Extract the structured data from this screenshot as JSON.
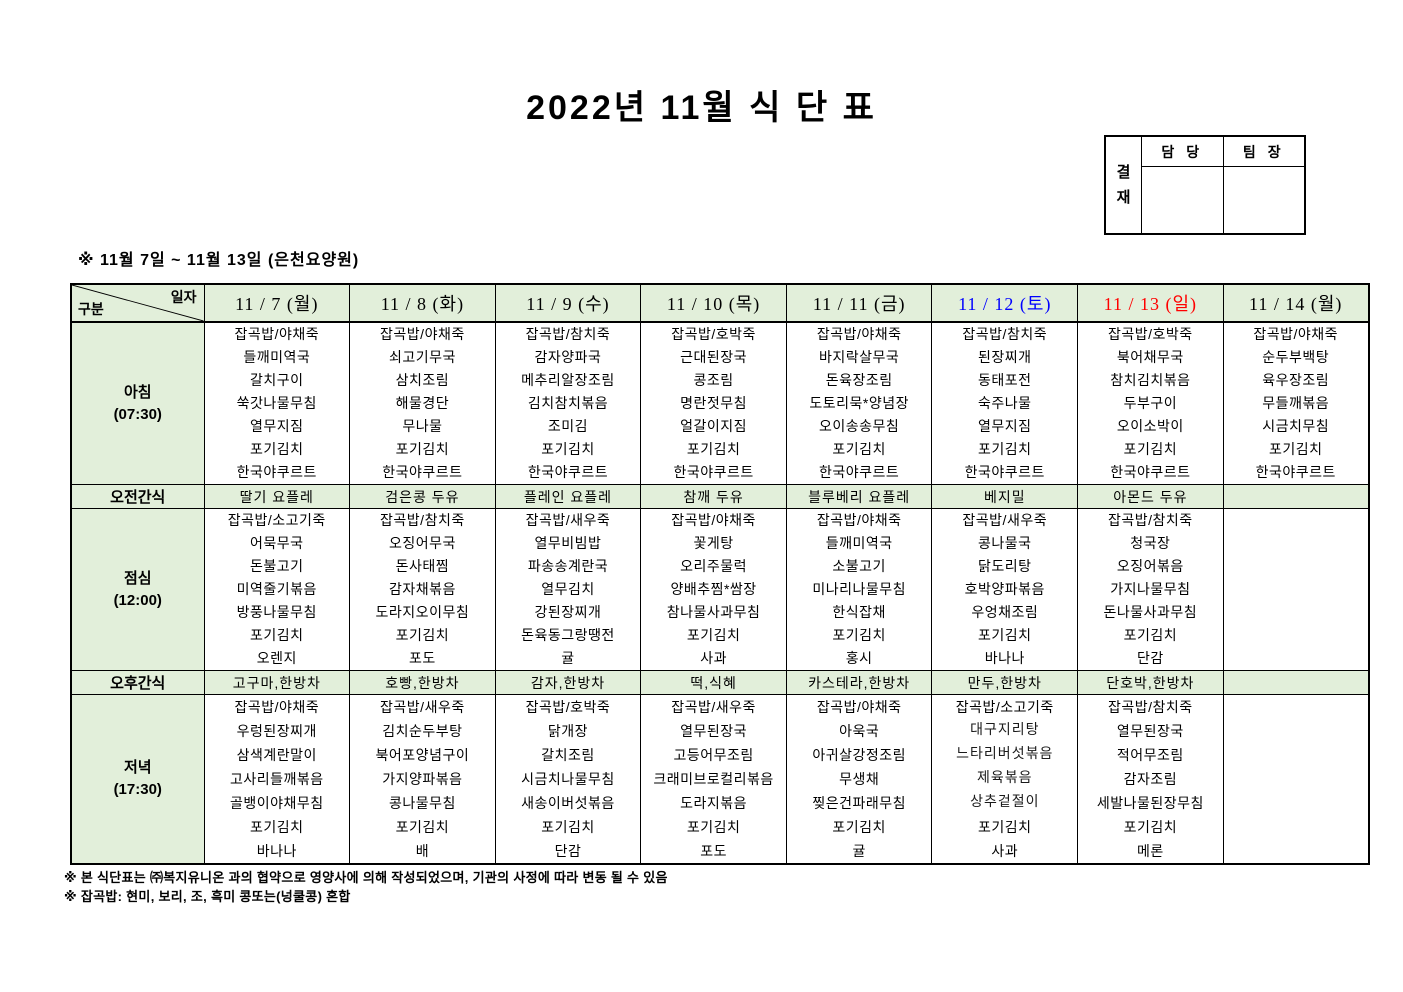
{
  "title": "2022년 11월 식 단 표",
  "subtitle": "※ 11월 7일 ~ 11월 13일 (은천요양원)",
  "approval": {
    "side_label": "결재",
    "columns": [
      "담 당",
      "팀 장"
    ]
  },
  "colors": {
    "header_bg": "#e2efda",
    "weekday": "#000000",
    "saturday": "#0000ff",
    "sunday": "#ff0000"
  },
  "table": {
    "corner": {
      "top": "일자",
      "bottom": "구분"
    },
    "dates": [
      {
        "label": "11 / 7 (월)",
        "color": "#000000"
      },
      {
        "label": "11 / 8 (화)",
        "color": "#000000"
      },
      {
        "label": "11 / 9 (수)",
        "color": "#000000"
      },
      {
        "label": "11 / 10 (목)",
        "color": "#000000"
      },
      {
        "label": "11 / 11 (금)",
        "color": "#000000"
      },
      {
        "label": "11 / 12 (토)",
        "color": "#0000ff"
      },
      {
        "label": "11 / 13 (일)",
        "color": "#ff0000"
      },
      {
        "label": "11 / 14 (월)",
        "color": "#000000"
      }
    ],
    "serif_items": [
      "대구지리탕",
      "느타리버섯볶음",
      "제육볶음",
      "상추겉절이"
    ],
    "rows": [
      {
        "id": "breakfast",
        "type": "meal",
        "label": "아침",
        "time": "(07:30)",
        "cells": [
          [
            "잡곡밥/야채죽",
            "들깨미역국",
            "갈치구이",
            "쑥갓나물무침",
            "열무지짐",
            "포기김치",
            "한국야쿠르트"
          ],
          [
            "잡곡밥/야채죽",
            "쇠고기무국",
            "삼치조림",
            "해물경단",
            "무나물",
            "포기김치",
            "한국야쿠르트"
          ],
          [
            "잡곡밥/참치죽",
            "감자양파국",
            "메추리알장조림",
            "김치참치볶음",
            "조미김",
            "포기김치",
            "한국야쿠르트"
          ],
          [
            "잡곡밥/호박죽",
            "근대된장국",
            "콩조림",
            "명란젓무침",
            "얼갈이지짐",
            "포기김치",
            "한국야쿠르트"
          ],
          [
            "잡곡밥/야채죽",
            "바지락살무국",
            "돈육장조림",
            "도토리묵*양념장",
            "오이송송무침",
            "포기김치",
            "한국야쿠르트"
          ],
          [
            "잡곡밥/참치죽",
            "된장찌개",
            "동태포전",
            "숙주나물",
            "열무지짐",
            "포기김치",
            "한국야쿠르트"
          ],
          [
            "잡곡밥/호박죽",
            "북어채무국",
            "참치김치볶음",
            "두부구이",
            "오이소박이",
            "포기김치",
            "한국야쿠르트"
          ],
          [
            "잡곡밥/야채죽",
            "순두부백탕",
            "육우장조림",
            "무들깨볶음",
            "시금치무침",
            "포기김치",
            "한국야쿠르트"
          ]
        ]
      },
      {
        "id": "morning-snack",
        "type": "snack",
        "label": "오전간식",
        "cells": [
          "딸기 요플레",
          "검은콩 두유",
          "플레인 요플레",
          "참깨 두유",
          "블루베리 요플레",
          "베지밀",
          "아몬드 두유",
          ""
        ]
      },
      {
        "id": "lunch",
        "type": "meal",
        "label": "점심",
        "time": "(12:00)",
        "cells": [
          [
            "잡곡밥/소고기죽",
            "어묵무국",
            "돈불고기",
            "미역줄기볶음",
            "방풍나물무침",
            "포기김치",
            "오렌지"
          ],
          [
            "잡곡밥/참치죽",
            "오징어무국",
            "돈사태찜",
            "감자채볶음",
            "도라지오이무침",
            "포기김치",
            "포도"
          ],
          [
            "잡곡밥/새우죽",
            "열무비빔밥",
            "파송송계란국",
            "열무김치",
            "강된장찌개",
            "돈육동그랑땡전",
            "귤"
          ],
          [
            "잡곡밥/야채죽",
            "꽃게탕",
            "오리주물럭",
            "양배추찜*쌈장",
            "참나물사과무침",
            "포기김치",
            "사과"
          ],
          [
            "잡곡밥/야채죽",
            "들깨미역국",
            "소불고기",
            "미나리나물무침",
            "한식잡채",
            "포기김치",
            "홍시"
          ],
          [
            "잡곡밥/새우죽",
            "콩나물국",
            "닭도리탕",
            "호박양파볶음",
            "우엉채조림",
            "포기김치",
            "바나나"
          ],
          [
            "잡곡밥/참치죽",
            "청국장",
            "오징어볶음",
            "가지나물무침",
            "돈나물사과무침",
            "포기김치",
            "단감"
          ],
          []
        ]
      },
      {
        "id": "afternoon-snack",
        "type": "snack",
        "label": "오후간식",
        "cells": [
          "고구마,한방차",
          "호빵,한방차",
          "감자,한방차",
          "떡,식혜",
          "카스테라,한방차",
          "만두,한방차",
          "단호박,한방차",
          ""
        ]
      },
      {
        "id": "dinner",
        "type": "meal",
        "label": "저녁",
        "time": "(17:30)",
        "cells": [
          [
            "잡곡밥/야채죽",
            "우렁된장찌개",
            "삼색계란말이",
            "고사리들깨볶음",
            "골뱅이야채무침",
            "포기김치",
            "바나나"
          ],
          [
            "잡곡밥/새우죽",
            "김치순두부탕",
            "북어포양념구이",
            "가지양파볶음",
            "콩나물무침",
            "포기김치",
            "배"
          ],
          [
            "잡곡밥/호박죽",
            "닭개장",
            "갈치조림",
            "시금치나물무침",
            "새송이버섯볶음",
            "포기김치",
            "단감"
          ],
          [
            "잡곡밥/새우죽",
            "열무된장국",
            "고등어무조림",
            "크래미브로컬리볶음",
            "도라지볶음",
            "포기김치",
            "포도"
          ],
          [
            "잡곡밥/야채죽",
            "아욱국",
            "아귀살강정조림",
            "무생채",
            "찢은건파래무침",
            "포기김치",
            "귤"
          ],
          [
            "잡곡밥/소고기죽",
            "대구지리탕",
            "느타리버섯볶음",
            "제육볶음",
            "상추겉절이",
            "포기김치",
            "사과"
          ],
          [
            "잡곡밥/참치죽",
            "열무된장국",
            "적어무조림",
            "감자조림",
            "세발나물된장무침",
            "포기김치",
            "메론"
          ],
          []
        ]
      }
    ]
  },
  "footnotes": [
    "※ 본 식단표는 ㈜복지유니온 과의 협약으로 영양사에 의해 작성되었으며, 기관의 사정에 따라 변동 될 수 있음",
    "※ 잡곡밥: 현미, 보리, 조, 흑미 콩또는(넝쿨콩) 혼합"
  ]
}
